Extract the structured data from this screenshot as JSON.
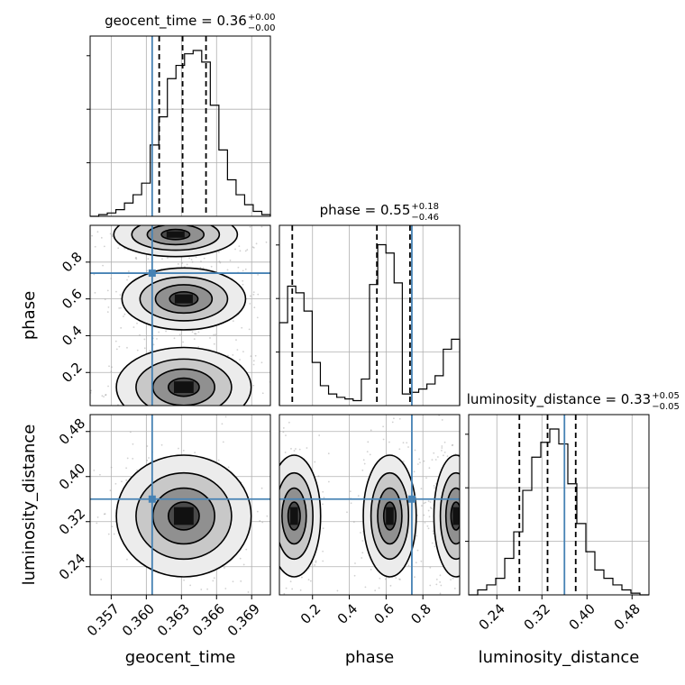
{
  "chart_data": {
    "type": "corner",
    "parameters": [
      {
        "name": "geocent_time",
        "median": "0.36",
        "err_plus": "+0.00",
        "err_minus": "−0.00",
        "range": [
          0.3552,
          0.3706
        ],
        "ticks": [
          0.357,
          0.36,
          0.363,
          0.366,
          0.369
        ],
        "tick_labels": [
          "0.357",
          "0.360",
          "0.363",
          "0.366",
          "0.369"
        ],
        "truth": 0.3605,
        "quantiles": [
          0.3611,
          0.3631,
          0.3651
        ],
        "hist": [
          0.0,
          0.01,
          0.02,
          0.04,
          0.08,
          0.13,
          0.2,
          0.43,
          0.6,
          0.83,
          0.91,
          0.98,
          1.0,
          0.93,
          0.67,
          0.4,
          0.22,
          0.13,
          0.07,
          0.03,
          0.01
        ]
      },
      {
        "name": "phase",
        "median": "0.55",
        "err_plus": "+0.18",
        "err_minus": "−0.46",
        "range": [
          0.02,
          1.0
        ],
        "ticks": [
          0.2,
          0.4,
          0.6,
          0.8
        ],
        "tick_labels": [
          "0.2",
          "0.4",
          "0.6",
          "0.8"
        ],
        "truth": 0.74,
        "quantiles": [
          0.09,
          0.55,
          0.73
        ],
        "hist": [
          0.5,
          0.72,
          0.68,
          0.57,
          0.26,
          0.12,
          0.07,
          0.05,
          0.04,
          0.03,
          0.16,
          0.73,
          0.97,
          0.92,
          0.74,
          0.07,
          0.08,
          0.1,
          0.13,
          0.18,
          0.34,
          0.4
        ]
      },
      {
        "name": "luminosity_distance",
        "median": "0.33",
        "err_plus": "+0.05",
        "err_minus": "−0.05",
        "range": [
          0.19,
          0.51
        ],
        "ticks": [
          0.24,
          0.32,
          0.4,
          0.48
        ],
        "tick_labels": [
          "0.24",
          "0.32",
          "0.40",
          "0.48"
        ],
        "truth": 0.36,
        "quantiles": [
          0.28,
          0.33,
          0.38
        ],
        "hist": [
          0.0,
          0.03,
          0.06,
          0.1,
          0.22,
          0.38,
          0.63,
          0.83,
          0.92,
          1.0,
          0.91,
          0.67,
          0.43,
          0.26,
          0.15,
          0.1,
          0.06,
          0.03,
          0.01,
          0.0
        ]
      }
    ],
    "blobs": {
      "geocent_time__phase": [
        {
          "x": 0.3632,
          "y": 0.6,
          "sx": 0.0022,
          "sy": 0.07
        },
        {
          "x": 0.3632,
          "y": 0.12,
          "sx": 0.0024,
          "sy": 0.09
        },
        {
          "x": 0.3625,
          "y": 0.95,
          "sx": 0.0022,
          "sy": 0.05
        }
      ],
      "geocent_time__luminosity_distance": [
        {
          "x": 0.3632,
          "y": 0.33,
          "sx": 0.0024,
          "sy": 0.045
        }
      ],
      "phase__luminosity_distance": [
        {
          "x": 0.1,
          "y": 0.33,
          "sx": 0.06,
          "sy": 0.045
        },
        {
          "x": 0.62,
          "y": 0.33,
          "sx": 0.06,
          "sy": 0.045
        },
        {
          "x": 0.98,
          "y": 0.33,
          "sx": 0.05,
          "sy": 0.045
        }
      ]
    },
    "colors": {
      "truth": "#4682b4",
      "hist": "#000000",
      "grid": "#b0b0b0"
    },
    "grid": true
  }
}
